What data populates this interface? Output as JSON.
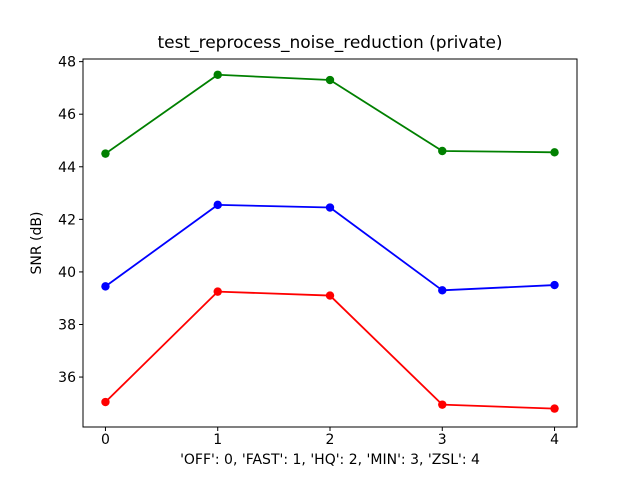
{
  "figure": {
    "background": "#ffffff"
  },
  "chart_data": {
    "type": "line",
    "title": "test_reprocess_noise_reduction (private)",
    "xlabel": "'OFF': 0, 'FAST': 1, 'HQ': 2, 'MIN': 3, 'ZSL': 4",
    "ylabel": "SNR (dB)",
    "x": [
      0,
      1,
      2,
      3,
      4
    ],
    "xticks": [
      0,
      1,
      2,
      3,
      4
    ],
    "xtick_labels": [
      "0",
      "1",
      "2",
      "3",
      "4"
    ],
    "yticks": [
      36,
      38,
      40,
      42,
      44,
      46,
      48
    ],
    "ytick_labels": [
      "36",
      "38",
      "40",
      "42",
      "44",
      "46",
      "48"
    ],
    "xlim": [
      -0.2,
      4.2
    ],
    "ylim": [
      34.1,
      48.1
    ],
    "grid": false,
    "legend_position": "none",
    "marker": "circle",
    "axis_color": "#000000",
    "series": [
      {
        "name": "green-series",
        "color": "#008000",
        "values": [
          44.5,
          47.5,
          47.3,
          44.6,
          44.55
        ]
      },
      {
        "name": "blue-series",
        "color": "#0000ff",
        "values": [
          39.45,
          42.55,
          42.45,
          39.3,
          39.5
        ]
      },
      {
        "name": "red-series",
        "color": "#ff0000",
        "values": [
          35.05,
          39.25,
          39.1,
          34.95,
          34.8
        ]
      }
    ]
  }
}
